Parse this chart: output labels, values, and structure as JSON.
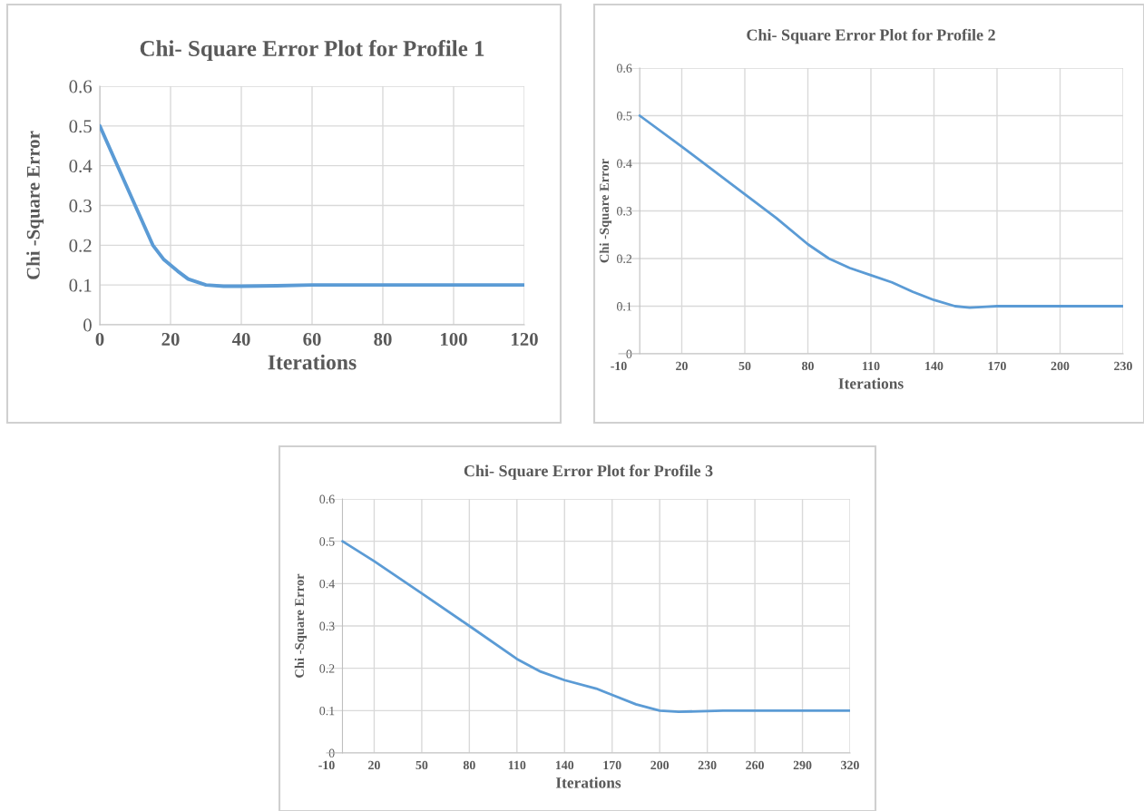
{
  "chart_data": [
    {
      "type": "line",
      "title": "Chi- Square Error Plot for Profile 1",
      "xlabel": "Iterations",
      "ylabel": "Chi -Square Error",
      "xlim": [
        0,
        120
      ],
      "xticks": [
        0,
        20,
        40,
        60,
        80,
        100,
        120
      ],
      "ylim": [
        0,
        0.6
      ],
      "yticks": [
        0,
        0.1,
        0.2,
        0.3,
        0.4,
        0.5,
        0.6
      ],
      "grid": true,
      "series": [
        {
          "color": "#5b9bd5",
          "x": [
            0,
            5,
            10,
            15,
            18,
            20,
            22,
            25,
            30,
            35,
            40,
            50,
            60,
            80,
            100,
            120
          ],
          "values": [
            0.5,
            0.4,
            0.3,
            0.2,
            0.165,
            0.15,
            0.135,
            0.115,
            0.1,
            0.097,
            0.097,
            0.098,
            0.1,
            0.1,
            0.1,
            0.1
          ]
        }
      ]
    },
    {
      "type": "line",
      "title": "Chi- Square Error Plot for Profile 2",
      "xlabel": "Iterations",
      "ylabel": "Chi -Square Error",
      "xlim": [
        -10,
        230
      ],
      "xticks": [
        -10,
        20,
        50,
        80,
        110,
        140,
        170,
        200,
        230
      ],
      "ylim": [
        0,
        0.6
      ],
      "yticks": [
        0,
        0.1,
        0.2,
        0.3,
        0.4,
        0.5,
        0.6
      ],
      "grid": true,
      "series": [
        {
          "color": "#5b9bd5",
          "x": [
            0,
            20,
            50,
            65,
            80,
            90,
            100,
            110,
            120,
            130,
            140,
            150,
            157,
            165,
            170,
            200,
            230
          ],
          "values": [
            0.5,
            0.435,
            0.335,
            0.285,
            0.23,
            0.2,
            0.18,
            0.165,
            0.15,
            0.13,
            0.113,
            0.1,
            0.097,
            0.099,
            0.1,
            0.1,
            0.1
          ]
        }
      ]
    },
    {
      "type": "line",
      "title": "Chi- Square Error Plot for Profile 3",
      "xlabel": "Iterations",
      "ylabel": "Chi -Square Error",
      "xlim": [
        -10,
        320
      ],
      "xticks": [
        -10,
        20,
        50,
        80,
        110,
        140,
        170,
        200,
        230,
        260,
        290,
        320
      ],
      "ylim": [
        0,
        0.6
      ],
      "yticks": [
        0,
        0.1,
        0.2,
        0.3,
        0.4,
        0.5,
        0.6
      ],
      "grid": true,
      "series": [
        {
          "color": "#5b9bd5",
          "x": [
            0,
            20,
            50,
            80,
            110,
            125,
            140,
            160,
            170,
            185,
            200,
            212,
            230,
            240,
            320
          ],
          "values": [
            0.5,
            0.453,
            0.377,
            0.3,
            0.222,
            0.192,
            0.172,
            0.152,
            0.137,
            0.115,
            0.1,
            0.097,
            0.099,
            0.1,
            0.1
          ]
        }
      ]
    }
  ]
}
